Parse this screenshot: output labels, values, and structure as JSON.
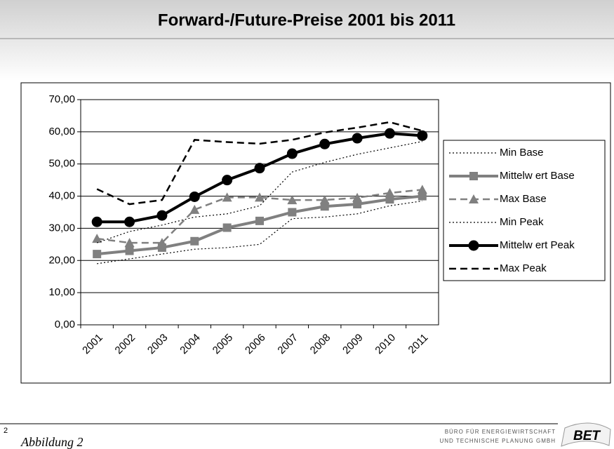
{
  "chart_data": {
    "type": "line",
    "title": "Forward-/Future-Preise 2001 bis 2011",
    "categories": [
      "2001",
      "2002",
      "2003",
      "2004",
      "2005",
      "2006",
      "2007",
      "2008",
      "2009",
      "2010",
      "2011"
    ],
    "series": [
      {
        "name": "Min Base",
        "color": "#000000",
        "line_style": "dotted",
        "marker": "none",
        "values": [
          19,
          20.5,
          22,
          23.5,
          24,
          25,
          33,
          33.5,
          34.5,
          37,
          38.5
        ]
      },
      {
        "name": "Mittelw ert Base",
        "color": "#808080",
        "line_style": "solid",
        "marker": "square",
        "values": [
          22,
          23,
          24,
          26,
          30.2,
          32.3,
          35,
          36.8,
          37.5,
          39,
          40
        ]
      },
      {
        "name": "Max Base",
        "color": "#808080",
        "line_style": "dashed",
        "marker": "triangle",
        "values": [
          26.8,
          25.5,
          25.5,
          35.8,
          39.6,
          39.6,
          38.8,
          38.8,
          39.5,
          41,
          42
        ]
      },
      {
        "name": "Min Peak",
        "color": "#000000",
        "line_style": "dotted",
        "marker": "none",
        "values": [
          25.5,
          29,
          31,
          33.5,
          34.5,
          37,
          47.5,
          50.5,
          53,
          55,
          57
        ]
      },
      {
        "name": "Mittelw ert Peak",
        "color": "#000000",
        "line_style": "solid",
        "marker": "circle",
        "values": [
          32,
          32,
          34,
          39.8,
          45,
          48.7,
          53.2,
          56.2,
          58,
          59.5,
          58.8
        ]
      },
      {
        "name": "Max Peak",
        "color": "#000000",
        "line_style": "dashed",
        "marker": "none",
        "values": [
          42.2,
          37.5,
          38.8,
          57.5,
          56.8,
          56.3,
          57.5,
          59.8,
          61.3,
          63,
          60.3
        ]
      }
    ],
    "ylim": [
      0,
      70
    ],
    "yticks": [
      {
        "value": 0,
        "label": "0,00"
      },
      {
        "value": 10,
        "label": "10,00"
      },
      {
        "value": 20,
        "label": "20,00"
      },
      {
        "value": 30,
        "label": "30,00"
      },
      {
        "value": 40,
        "label": "40,00"
      },
      {
        "value": 50,
        "label": "50,00"
      },
      {
        "value": 60,
        "label": "60,00"
      },
      {
        "value": 70,
        "label": "70,00"
      }
    ],
    "grid": true,
    "legend": "right"
  },
  "footer": {
    "page": "2",
    "caption": "Abbildung 2",
    "company_line1": "BÜRO FÜR ENERGIEWIRTSCHAFT",
    "company_line2": "UND TECHNISCHE PLANUNG GMBH",
    "logo": "BET"
  }
}
